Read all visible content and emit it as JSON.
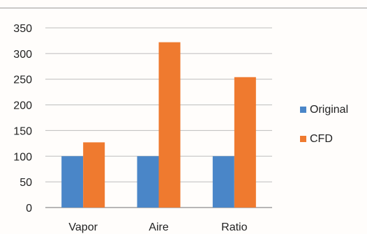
{
  "chart_data": {
    "type": "bar",
    "categories": [
      "Vapor",
      "Aire",
      "Ratio"
    ],
    "series": [
      {
        "name": "Original",
        "values": [
          100,
          100,
          100
        ],
        "color": "#4a86c8"
      },
      {
        "name": "CFD",
        "values": [
          127,
          322,
          254
        ],
        "color": "#ef7a2f"
      }
    ],
    "title": "",
    "xlabel": "",
    "ylabel": "",
    "ylim": [
      0,
      350
    ],
    "yticks": [
      0,
      50,
      100,
      150,
      200,
      250,
      300,
      350
    ],
    "grid": true,
    "legend_position": "right"
  }
}
